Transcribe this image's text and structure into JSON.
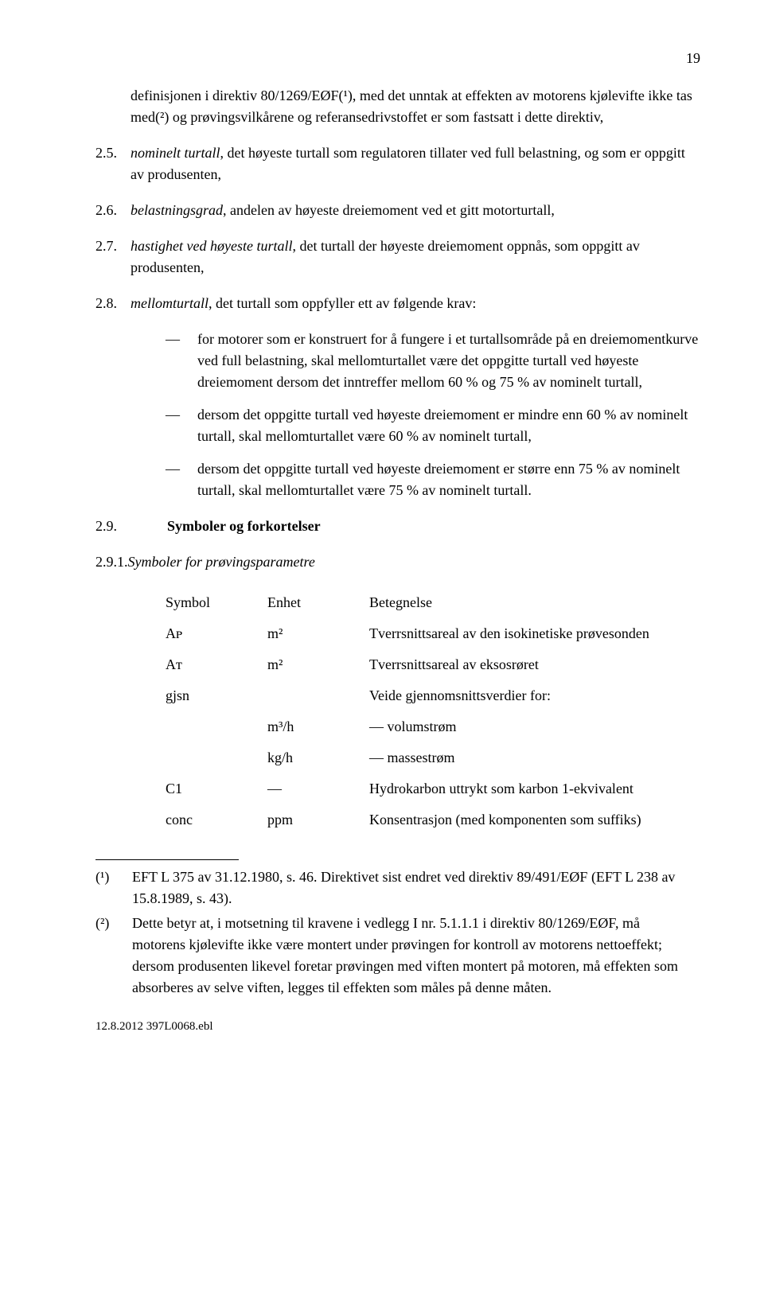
{
  "page_number": "19",
  "items": [
    {
      "num": " ",
      "text": "definisjonen i direktiv 80/1269/EØF(¹), med det unntak at effekten av motorens kjølevifte ikke tas med(²) og prøvingsvilkårene og referansedrivstoffet er som fastsatt i dette direktiv,"
    },
    {
      "num": "2.5.",
      "lead_italic": "nominelt turtall",
      "rest": ", det høyeste turtall som regulatoren tillater ved full belastning, og som er oppgitt av produsenten,"
    },
    {
      "num": "2.6.",
      "lead_italic": "belastningsgrad",
      "rest": ", andelen av høyeste dreiemoment ved et gitt motorturtall,"
    },
    {
      "num": "2.7.",
      "lead_italic": "hastighet ved høyeste turtall",
      "rest": ", det turtall der høyeste dreiemoment oppnås, som oppgitt av produsenten,"
    },
    {
      "num": "2.8.",
      "lead_italic": "mellomturtall",
      "rest": ", det turtall som oppfyller ett av følgende krav:"
    }
  ],
  "sublist": [
    "for motorer som er konstruert for å fungere i et turtallsområde på en dreiemomentkurve ved full belastning, skal mellomturtallet være det oppgitte turtall ved høyeste dreiemoment dersom det inntreffer mellom 60 % og 75 % av nominelt turtall,",
    "dersom det oppgitte turtall ved høyeste dreiemoment er mindre enn 60 % av nominelt turtall, skal mellomturtallet være 60 % av nominelt turtall,",
    "dersom det oppgitte turtall ved høyeste dreiemoment er større enn 75 % av nominelt turtall, skal mellomturtallet være 75 % av nominelt turtall."
  ],
  "section_29": {
    "num": "2.9.",
    "title": "Symboler og forkortelser"
  },
  "section_291": {
    "num": "2.9.1.",
    "title_italic": "Symboler for prøvingsparametre"
  },
  "table": {
    "header": [
      "Symbol",
      "Enhet",
      "Betegnelse"
    ],
    "rows": [
      [
        "Aᴘ",
        "m²",
        "Tverrsnittsareal av den isokinetiske prøvesonden"
      ],
      [
        "Aᴛ",
        "m²",
        "Tverrsnittsareal av eksosrøret"
      ],
      [
        "gjsn",
        "",
        "Veide gjennomsnittsverdier for:"
      ],
      [
        "",
        "m³/h",
        "— volumstrøm"
      ],
      [
        "",
        "kg/h",
        "— massestrøm"
      ],
      [
        "C1",
        "—",
        "Hydrokarbon uttrykt som karbon 1-ekvivalent"
      ],
      [
        "conc",
        "ppm",
        "Konsentrasjon (med komponenten som suffiks)"
      ]
    ]
  },
  "footnotes": [
    {
      "mark": "(¹)",
      "text": "EFT L 375 av 31.12.1980, s. 46. Direktivet sist endret ved direktiv 89/491/EØF (EFT L 238 av 15.8.1989, s. 43)."
    },
    {
      "mark": "(²)",
      "text": "Dette betyr at, i motsetning til kravene i vedlegg I nr. 5.1.1.1 i direktiv 80/1269/EØF, må motorens kjølevifte ikke være montert under prøvingen for kontroll av motorens nettoeffekt; dersom produsenten likevel foretar prøvingen med viften montert på motoren, må effekten som absorberes av selve viften, legges til effekten som måles på denne måten."
    }
  ],
  "footer": "12.8.2012 397L0068.ebl"
}
